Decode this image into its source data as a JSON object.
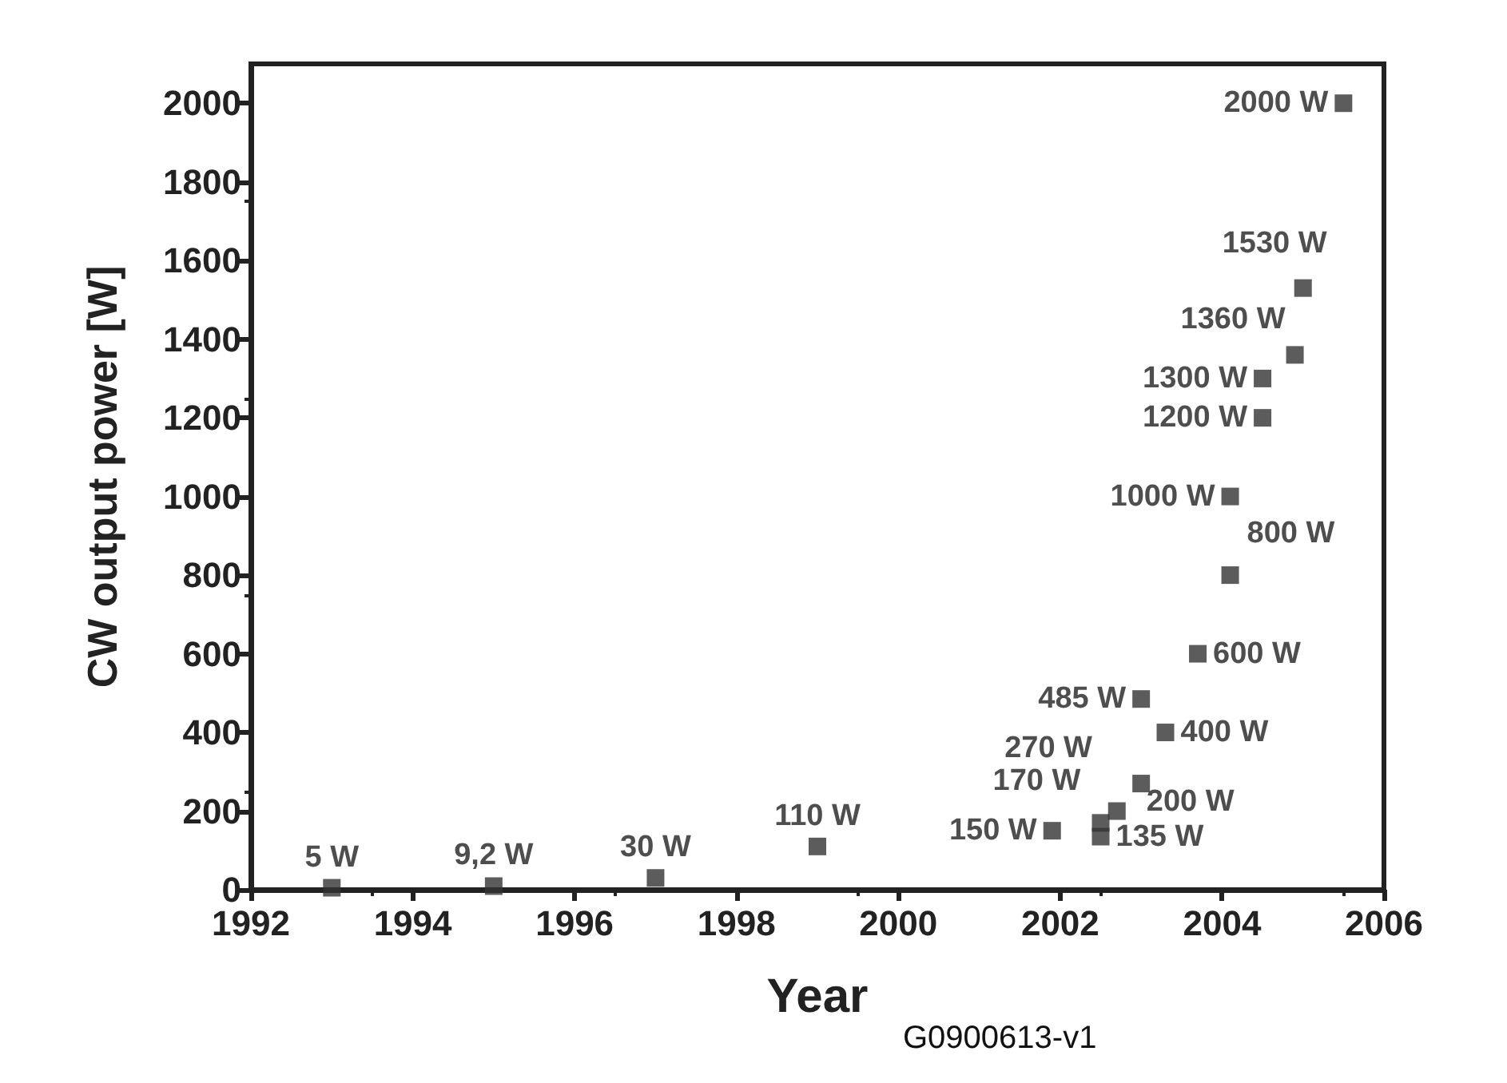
{
  "chart_data": {
    "type": "scatter",
    "xlabel": "Year",
    "ylabel": "CW output power [W]",
    "x": [
      1993,
      1995,
      1997,
      1999,
      2001.9,
      2002.5,
      2002.5,
      2002.7,
      2003.0,
      2003.0,
      2003.3,
      2003.7,
      2004.1,
      2004.1,
      2004.5,
      2004.5,
      2004.9,
      2005.0,
      2005.5
    ],
    "values": [
      5,
      9.2,
      30,
      110,
      150,
      135,
      170,
      200,
      270,
      485,
      400,
      600,
      800,
      1000,
      1200,
      1300,
      1360,
      1530,
      2000
    ],
    "value_labels": [
      "5 W",
      "9,2 W",
      "30 W",
      "110 W",
      "150 W",
      "135 W",
      "170 W",
      "200 W",
      "270 W",
      "485 W",
      "400 W",
      "600 W",
      "800 W",
      "1000 W",
      "1200 W",
      "1300 W",
      "1360 W",
      "1530 W",
      "2000 W"
    ],
    "color": "#333333",
    "marker": "square",
    "xlim": [
      1992,
      2006
    ],
    "xticks": [
      1992,
      1994,
      1996,
      1998,
      2000,
      2002,
      2004,
      2006
    ],
    "ylim": [
      0,
      2100
    ],
    "yticks": [
      0,
      200,
      400,
      600,
      800,
      1000,
      1200,
      1400,
      1600,
      1800,
      2000
    ],
    "grid": false,
    "annotations": [
      "G0900613-v1"
    ]
  }
}
